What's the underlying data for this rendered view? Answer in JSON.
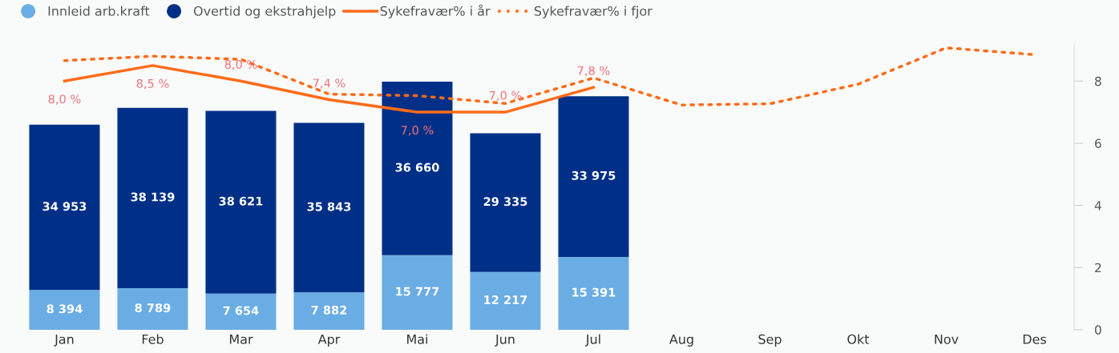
{
  "chart_data": {
    "type": "bar",
    "stacked": true,
    "categories": [
      "Jan",
      "Feb",
      "Mar",
      "Apr",
      "Mai",
      "Jun",
      "Jul",
      "Aug",
      "Sep",
      "Okt",
      "Nov",
      "Des"
    ],
    "series": [
      {
        "name": "Innleid arb.kraft",
        "color": "#6aade4",
        "axis": "y2",
        "values": [
          8394,
          8789,
          7654,
          7882,
          15777,
          12217,
          15391,
          null,
          null,
          null,
          null,
          null
        ],
        "value_labels": [
          "8 394",
          "8 789",
          "7 654",
          "7 882",
          "15 777",
          "12 217",
          "15 391",
          null,
          null,
          null,
          null,
          null
        ]
      },
      {
        "name": "Overtid og ekstrahjelp",
        "color": "#002f87",
        "axis": "y2",
        "values": [
          34953,
          38139,
          38621,
          35843,
          36660,
          29335,
          33975,
          null,
          null,
          null,
          null,
          null
        ],
        "value_labels": [
          "34 953",
          "38 139",
          "38 621",
          "35 843",
          "36 660",
          "29 335",
          "33 975",
          null,
          null,
          null,
          null,
          null
        ]
      },
      {
        "name": "Sykefravær% i år",
        "type": "line",
        "color": "#ff6b1a",
        "line_style": "solid",
        "values": [
          8.0,
          8.5,
          8.0,
          7.4,
          7.0,
          7.0,
          7.8,
          null,
          null,
          null,
          null,
          null
        ],
        "value_labels": [
          "8,0 %",
          "8,5 %",
          "8,0 %",
          "7,4 %",
          "7,0 %",
          "7,0 %",
          "7,8 %",
          null,
          null,
          null,
          null,
          null
        ]
      },
      {
        "name": "Sykefravær% i fjor",
        "type": "line",
        "color": "#ff6b1a",
        "line_style": "dotted",
        "values": [
          8.66,
          8.8,
          8.7,
          7.58,
          7.53,
          7.28,
          8.1,
          7.23,
          7.27,
          7.9,
          9.07,
          8.85
        ]
      }
    ],
    "ylim": [
      0,
      9.2
    ],
    "yticks": [
      0,
      2,
      4,
      6,
      8
    ],
    "legend": "top left"
  }
}
